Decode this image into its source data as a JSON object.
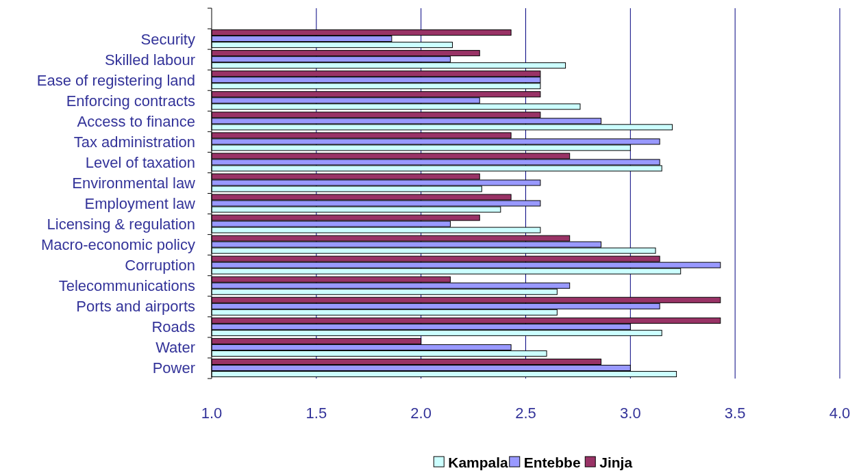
{
  "chart_data": {
    "type": "bar",
    "orientation": "horizontal",
    "categories": [
      null,
      "Security",
      "Skilled labour",
      "Ease of registering land",
      "Enforcing contracts",
      "Access to finance",
      "Tax administration",
      "Level of taxation",
      "Environmental law",
      "Employment law",
      "Licensing & regulation",
      "Macro-economic policy",
      "Corruption",
      "Telecommunications",
      "Ports and airports",
      "Roads",
      "Water",
      "Power"
    ],
    "series": [
      {
        "name": "Kampala",
        "color": "#ccffff",
        "values": [
          null,
          2.15,
          2.69,
          2.57,
          2.76,
          3.2,
          3.0,
          3.15,
          2.29,
          2.38,
          2.57,
          3.12,
          3.24,
          2.65,
          2.65,
          3.15,
          2.6,
          3.22
        ]
      },
      {
        "name": "Entebbe",
        "color": "#9999ff",
        "values": [
          null,
          1.86,
          2.14,
          2.57,
          2.28,
          2.86,
          3.14,
          3.14,
          2.57,
          2.57,
          2.14,
          2.86,
          3.43,
          2.71,
          3.14,
          3.0,
          2.43,
          3.0
        ]
      },
      {
        "name": "Jinja",
        "color": "#993366",
        "values": [
          null,
          2.43,
          2.28,
          2.57,
          2.57,
          2.57,
          2.43,
          2.71,
          2.28,
          2.43,
          2.28,
          2.71,
          3.14,
          2.14,
          3.43,
          3.43,
          2.0,
          2.86
        ]
      }
    ],
    "xlim": [
      1,
      4
    ],
    "xticks": [
      {
        "value": 1,
        "label": "1.0"
      },
      {
        "value": 1.5,
        "label": "1.5"
      },
      {
        "value": 2,
        "label": "2.0"
      },
      {
        "value": 2.5,
        "label": "2.5"
      },
      {
        "value": 3,
        "label": "3.0"
      },
      {
        "value": 3.5,
        "label": "3.5"
      },
      {
        "value": 4,
        "label": "4.0"
      }
    ],
    "grid": "x",
    "legend": "bottom"
  }
}
